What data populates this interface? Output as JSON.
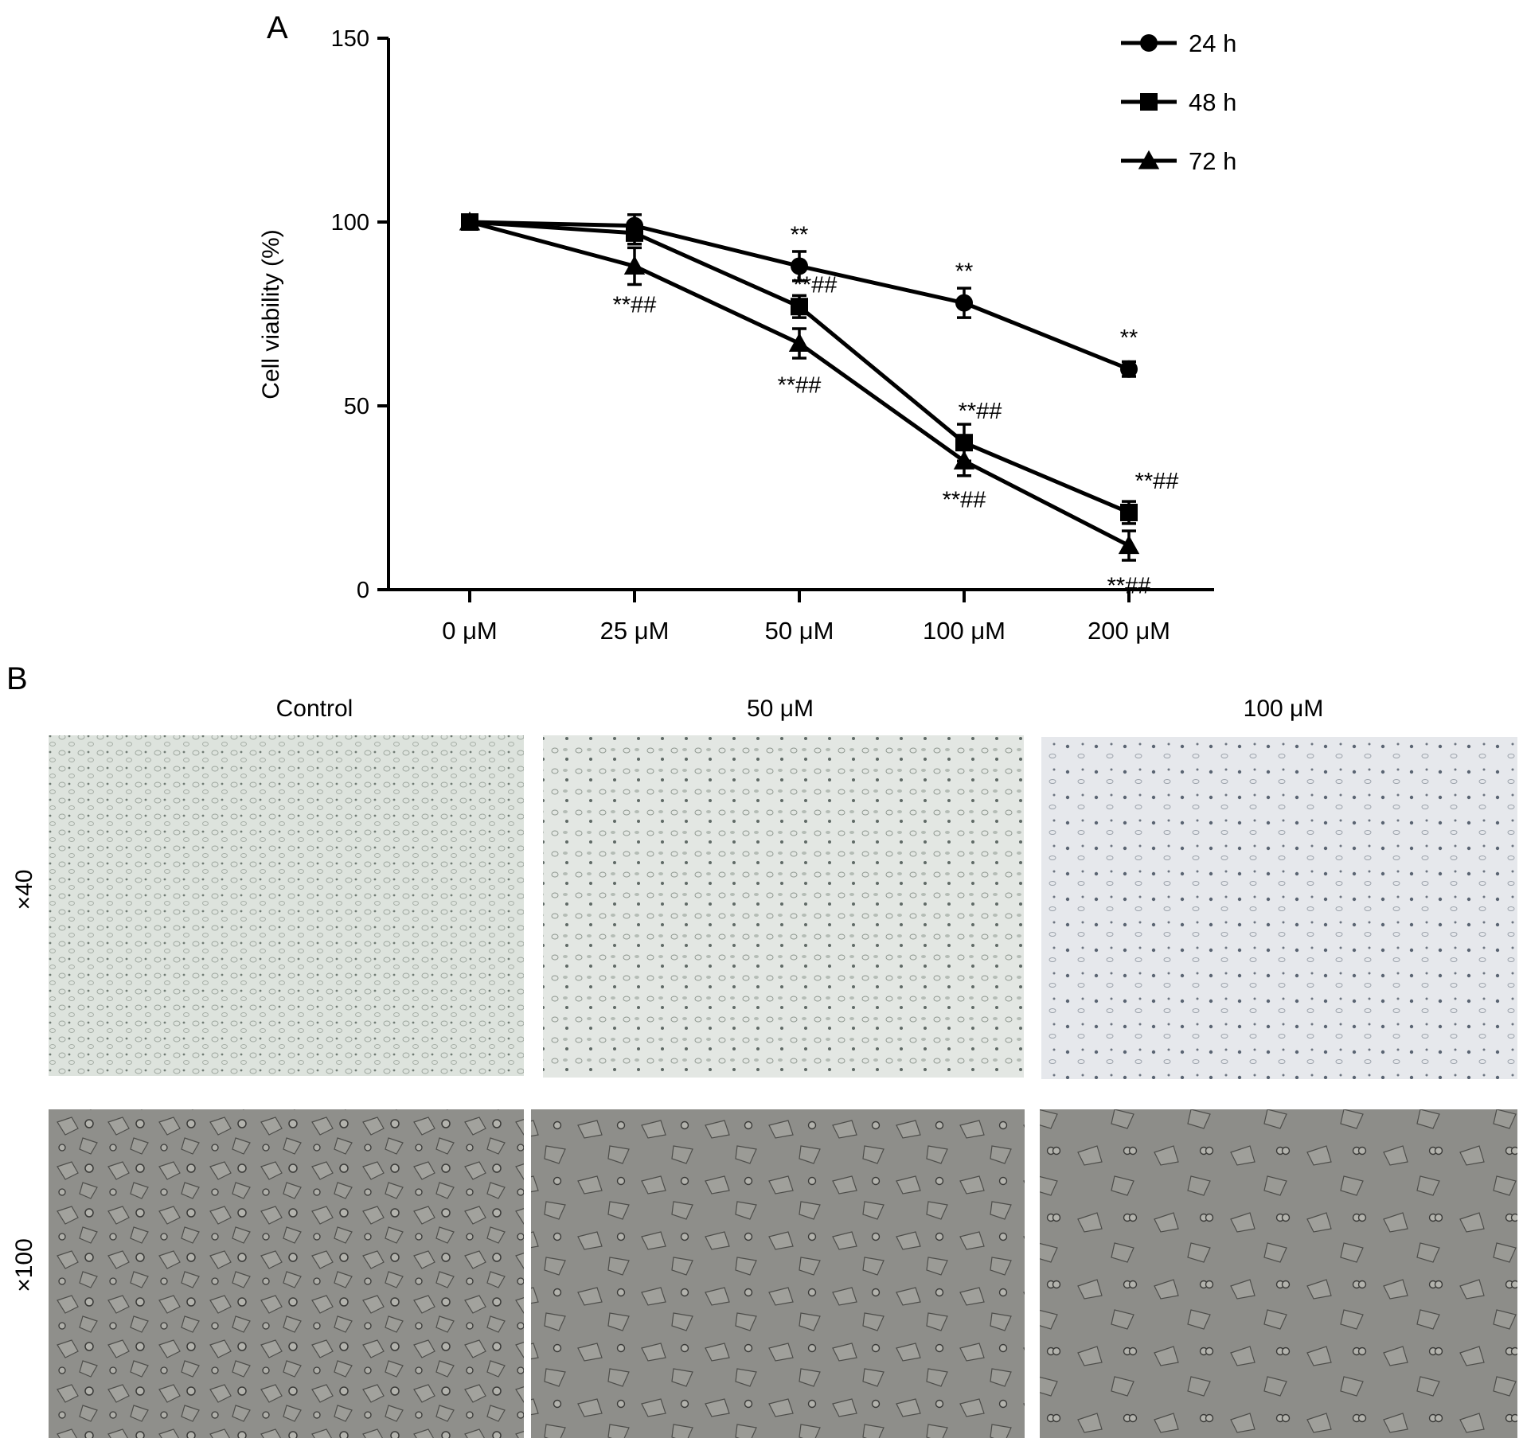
{
  "panels": {
    "a_label": "A",
    "b_label": "B"
  },
  "chart_data": {
    "type": "line",
    "title": "",
    "xlabel": "",
    "ylabel": "Cell viability (%)",
    "categories": [
      "0 μM",
      "25 μM",
      "50 μM",
      "100 μM",
      "200 μM"
    ],
    "ylim": [
      0,
      150
    ],
    "yticks": [
      "0",
      "50",
      "100",
      "150"
    ],
    "grid": false,
    "legend_position": "top-right",
    "series": [
      {
        "name": "24 h",
        "marker": "circle",
        "values": [
          100,
          99,
          88,
          78,
          60
        ],
        "errors": [
          1,
          3,
          4,
          4,
          2
        ],
        "annotations": [
          "",
          "",
          "**",
          "**",
          "**"
        ]
      },
      {
        "name": "48 h",
        "marker": "square",
        "values": [
          100,
          97,
          77,
          40,
          21
        ],
        "errors": [
          1,
          3,
          3,
          5,
          3
        ],
        "annotations": [
          "",
          "",
          "**##",
          "**##",
          "**##"
        ]
      },
      {
        "name": "72 h",
        "marker": "triangle",
        "values": [
          100,
          88,
          67,
          35,
          12
        ],
        "errors": [
          1,
          5,
          4,
          4,
          4
        ],
        "annotations": [
          "",
          "**##",
          "**##",
          "**##",
          "**##"
        ]
      }
    ]
  },
  "micrographs": {
    "columns": [
      "Control",
      "50 μM",
      "100 μM"
    ],
    "rows": [
      "×40",
      "×100"
    ]
  },
  "colors": {
    "line": "#000000",
    "micro_low_bg": "#dfe4df",
    "micro_high_bg": "#8e8e8a"
  }
}
